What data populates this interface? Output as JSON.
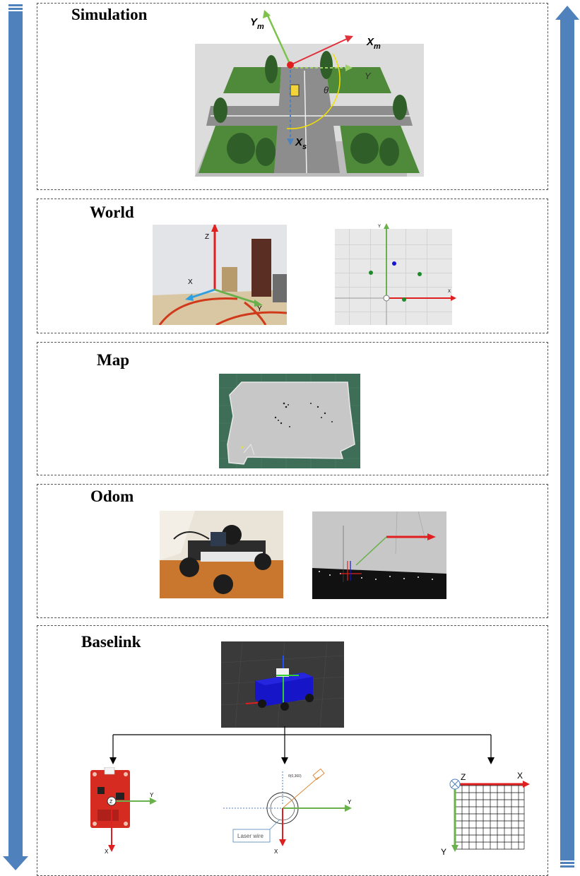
{
  "sections": {
    "simulation": {
      "title": "Simulation"
    },
    "world": {
      "title": "World"
    },
    "map": {
      "title": "Map"
    },
    "odom": {
      "title": "Odom"
    },
    "baselink": {
      "title": "Baselink"
    }
  },
  "simulation_axes": {
    "ym": "Y",
    "ym_sub": "m",
    "xm": "X",
    "xm_sub": "m",
    "xs": "X",
    "xs_sub": "s",
    "y_dash": "Y",
    "theta": "θ"
  },
  "world_axes": {
    "z": "Z",
    "x": "X",
    "y": "Y"
  },
  "world_plot": {
    "y": "Y",
    "x": "X"
  },
  "sensors": {
    "imu": {
      "y": "Y",
      "x": "X",
      "z": "Z"
    },
    "lidar": {
      "y": "Y",
      "x": "X",
      "caption": "Laser wire",
      "angle_label": "θ(0,360)"
    },
    "grid": {
      "z": "Z",
      "x": "X",
      "y": "Y"
    }
  },
  "colors": {
    "arrow_blue": "#4f81bd",
    "axis_red": "#e02020",
    "axis_green": "#6ab04c"
  }
}
